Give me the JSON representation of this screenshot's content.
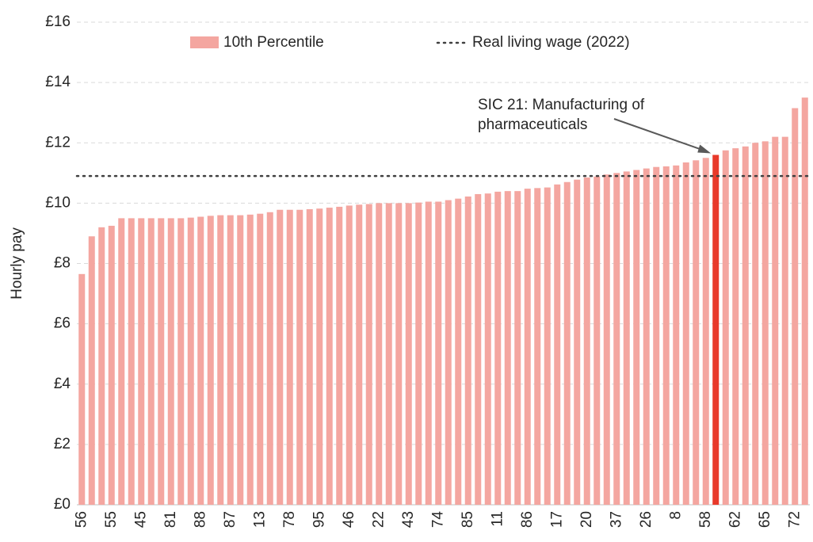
{
  "chart_data": {
    "type": "bar",
    "y_label": "Hourly pay",
    "categories": [
      "56",
      null,
      null,
      "55",
      null,
      null,
      "45",
      null,
      null,
      "81",
      null,
      null,
      "88",
      null,
      null,
      "87",
      null,
      null,
      "13",
      null,
      null,
      "78",
      null,
      null,
      "95",
      null,
      null,
      "46",
      null,
      null,
      "22",
      null,
      null,
      "43",
      null,
      null,
      "74",
      null,
      null,
      "85",
      null,
      null,
      "11",
      null,
      null,
      "86",
      null,
      null,
      "17",
      null,
      null,
      "20",
      null,
      null,
      "37",
      null,
      null,
      "26",
      null,
      null,
      "8",
      null,
      null,
      "58",
      null,
      null,
      "62",
      null,
      null,
      "65",
      null,
      null,
      "72",
      null
    ],
    "series": [
      {
        "name": "10th Percentile",
        "color": "#f4a6a0",
        "values": [
          7.65,
          8.9,
          9.2,
          9.25,
          9.5,
          9.5,
          9.5,
          9.5,
          9.5,
          9.5,
          9.5,
          9.52,
          9.55,
          9.58,
          9.6,
          9.6,
          9.6,
          9.62,
          9.65,
          9.7,
          9.78,
          9.78,
          9.78,
          9.8,
          9.82,
          9.85,
          9.88,
          9.92,
          9.95,
          9.97,
          10.0,
          10.0,
          10.0,
          10.0,
          10.02,
          10.05,
          10.05,
          10.1,
          10.15,
          10.22,
          10.3,
          10.32,
          10.38,
          10.4,
          10.4,
          10.48,
          10.5,
          10.52,
          10.62,
          10.7,
          10.78,
          10.85,
          10.88,
          10.95,
          11.0,
          11.05,
          11.1,
          11.15,
          11.2,
          11.22,
          11.25,
          11.35,
          11.42,
          11.5,
          11.6,
          11.75,
          11.82,
          11.88,
          12.0,
          12.05,
          12.2,
          12.2,
          13.15,
          13.5
        ],
        "colors": [
          "#f4a6a0",
          "#f4a6a0",
          "#f4a6a0",
          "#f4a6a0",
          "#f4a6a0",
          "#f4a6a0",
          "#f4a6a0",
          "#f4a6a0",
          "#f4a6a0",
          "#f4a6a0",
          "#f4a6a0",
          "#f4a6a0",
          "#f4a6a0",
          "#f4a6a0",
          "#f4a6a0",
          "#f4a6a0",
          "#f4a6a0",
          "#f4a6a0",
          "#f4a6a0",
          "#f4a6a0",
          "#f4a6a0",
          "#f4a6a0",
          "#f4a6a0",
          "#f4a6a0",
          "#f4a6a0",
          "#f4a6a0",
          "#f4a6a0",
          "#f4a6a0",
          "#f4a6a0",
          "#f4a6a0",
          "#f4a6a0",
          "#f4a6a0",
          "#f4a6a0",
          "#f4a6a0",
          "#f4a6a0",
          "#f4a6a0",
          "#f4a6a0",
          "#f4a6a0",
          "#f4a6a0",
          "#f4a6a0",
          "#f4a6a0",
          "#f4a6a0",
          "#f4a6a0",
          "#f4a6a0",
          "#f4a6a0",
          "#f4a6a0",
          "#f4a6a0",
          "#f4a6a0",
          "#f4a6a0",
          "#f4a6a0",
          "#f4a6a0",
          "#f4a6a0",
          "#f4a6a0",
          "#f4a6a0",
          "#f4a6a0",
          "#f4a6a0",
          "#f4a6a0",
          "#f4a6a0",
          "#f4a6a0",
          "#f4a6a0",
          "#f4a6a0",
          "#f4a6a0",
          "#f4a6a0",
          "#f4a6a0",
          "#e8392a",
          "#f4a6a0",
          "#f4a6a0",
          "#f4a6a0",
          "#f4a6a0",
          "#f4a6a0",
          "#f4a6a0",
          "#f4a6a0",
          "#f4a6a0",
          "#f4a6a0"
        ]
      }
    ],
    "reference_line": {
      "name": "Real living wage (2022)",
      "value": 10.9,
      "color": "#404040"
    },
    "annotation": {
      "lines": [
        "SIC 21: Manufacturing of",
        "pharmaceuticals"
      ],
      "index": 64
    },
    "ylim": [
      0,
      16
    ],
    "yticks": [
      {
        "value": 0,
        "label": "£0"
      },
      {
        "value": 2,
        "label": "£2"
      },
      {
        "value": 4,
        "label": "£4"
      },
      {
        "value": 6,
        "label": "£6"
      },
      {
        "value": 8,
        "label": "£8"
      },
      {
        "value": 10,
        "label": "£10"
      },
      {
        "value": 12,
        "label": "£12"
      },
      {
        "value": 14,
        "label": "£14"
      },
      {
        "value": 16,
        "label": "£16"
      }
    ],
    "grid": true,
    "legend": "top"
  }
}
